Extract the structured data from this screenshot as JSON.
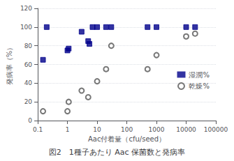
{
  "chart_data": {
    "type": "scatter",
    "title": "図2　1種子あたり Aac 保菌数と発病率",
    "xlabel": "Aac付着量（cfu/seed）",
    "ylabel": "発病率（%）",
    "log": "x",
    "xlim": [
      0.1,
      100000
    ],
    "xticks": [
      0.1,
      1,
      10,
      100,
      1000,
      10000,
      100000
    ],
    "ylim": [
      0,
      120
    ],
    "yticks": [
      0,
      20,
      40,
      60,
      80,
      100,
      120
    ],
    "grid": true,
    "legend": "right",
    "series": [
      {
        "name": "湿潤%",
        "color": "#00008B",
        "marker": "square",
        "x": [
          0.15,
          0.2,
          1.0,
          1.1,
          3.0,
          5.0,
          5.5,
          7.0,
          10.0,
          20.0,
          30.0,
          500.0,
          1000.0,
          10000.0,
          20000.0
        ],
        "values": [
          65,
          100,
          75,
          77,
          95,
          85,
          82,
          100,
          100,
          100,
          100,
          100,
          100,
          100,
          100
        ]
      },
      {
        "name": "乾燥%",
        "color": "#555555",
        "marker": "open_circle",
        "x": [
          0.15,
          1.0,
          1.1,
          3.0,
          5.0,
          10.0,
          20.0,
          30.0,
          500.0,
          1000.0,
          10000.0,
          20000.0
        ],
        "values": [
          10,
          10,
          20,
          32,
          25,
          42,
          55,
          80,
          55,
          70,
          90,
          93
        ]
      }
    ]
  }
}
